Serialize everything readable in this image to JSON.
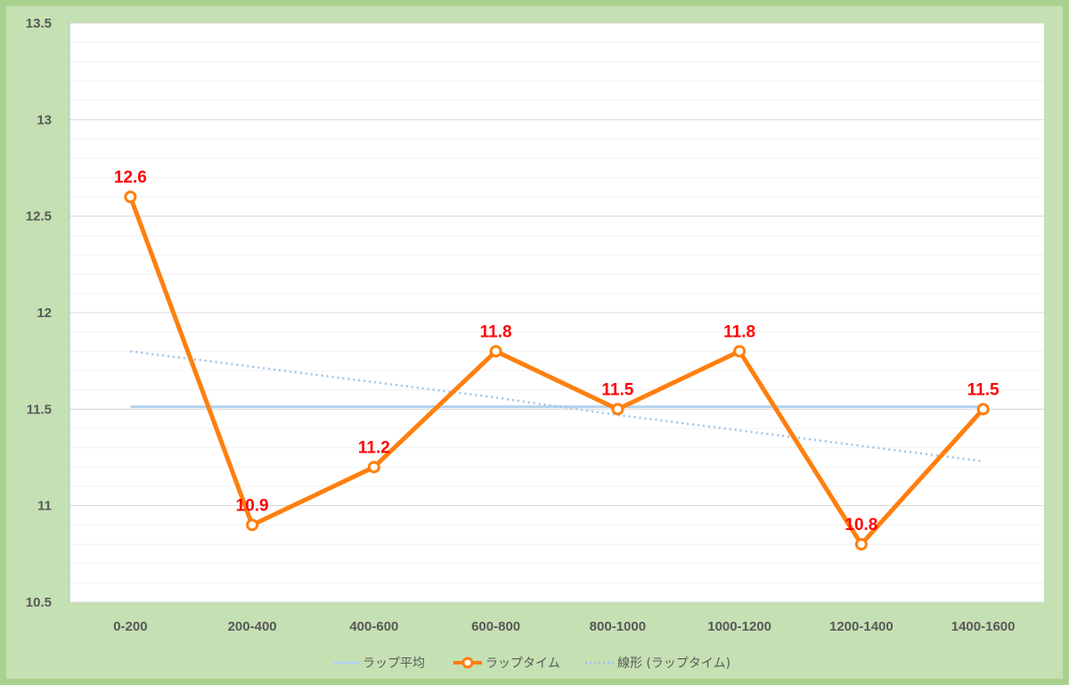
{
  "chart_data": {
    "type": "line",
    "categories": [
      "0-200",
      "200-400",
      "400-600",
      "600-800",
      "800-1000",
      "1000-1200",
      "1200-1400",
      "1400-1600"
    ],
    "y_ticks": [
      "10.5",
      "11",
      "11.5",
      "12",
      "12.5",
      "13",
      "13.5"
    ],
    "ylim": [
      10.5,
      13.5
    ],
    "ystep": 0.5,
    "grid": true,
    "legend_position": "bottom",
    "series": [
      {
        "name": "ラップ平均",
        "values": [
          11.5125,
          11.5125,
          11.5125,
          11.5125,
          11.5125,
          11.5125,
          11.5125,
          11.5125
        ],
        "color": "#b4d3ee",
        "style": "solid"
      },
      {
        "name": "ラップタイム",
        "values": [
          12.6,
          10.9,
          11.2,
          11.8,
          11.5,
          11.8,
          10.8,
          11.5
        ],
        "labels": [
          "12.6",
          "10.9",
          "11.2",
          "11.8",
          "11.5",
          "11.8",
          "10.8",
          "11.5"
        ],
        "color": "#ff7f0e",
        "style": "solid-markers"
      },
      {
        "name": "線形 (ラップタイム)",
        "values": [
          11.8,
          11.72,
          11.64,
          11.56,
          11.47,
          11.39,
          11.31,
          11.23
        ],
        "color": "#9dc3e6",
        "style": "dotted"
      }
    ],
    "colors": {
      "background": "#c5e0b3",
      "border": "#a9d18e",
      "plot": "#ffffff",
      "gridline": "#d9d9d9",
      "data_label": "#ff0000",
      "axis_text": "#595959"
    }
  }
}
